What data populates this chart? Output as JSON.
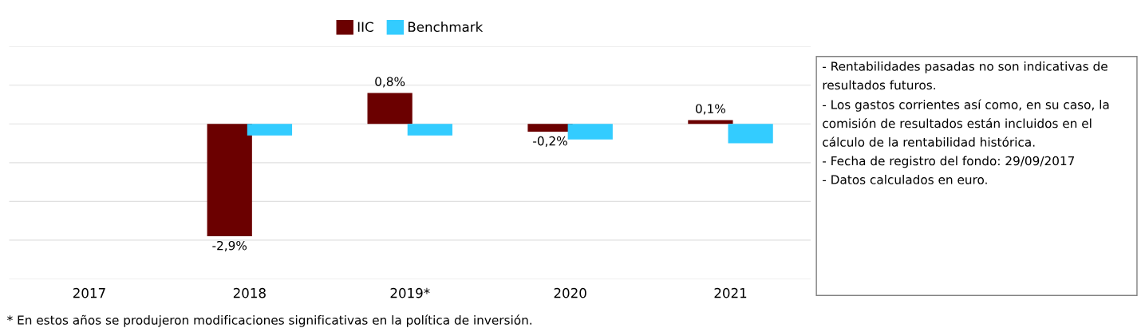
{
  "chart_data": {
    "type": "bar",
    "categories": [
      "2017",
      "2018",
      "2019*",
      "2020",
      "2021"
    ],
    "series": [
      {
        "name": "IIC",
        "color": "#6b0000",
        "values": [
          null,
          -2.9,
          0.8,
          -0.2,
          0.1
        ],
        "value_labels": [
          null,
          "-2,9%",
          "0,8%",
          "-0,2%",
          "0,1%"
        ]
      },
      {
        "name": "Benchmark",
        "color": "#33ccff",
        "values": [
          null,
          -0.3,
          -0.3,
          -0.4,
          -0.5
        ]
      }
    ],
    "ylim": [
      -4,
      2
    ],
    "yticks": [
      {
        "value": -4,
        "label": null
      },
      {
        "value": -3,
        "label": null
      },
      {
        "value": -2,
        "label": null
      },
      {
        "value": -1,
        "label": null
      },
      {
        "value": 0,
        "label": null
      },
      {
        "value": 1,
        "label": null
      },
      {
        "value": 2,
        "label": null
      }
    ],
    "tick_labels": "x",
    "grid": "y",
    "legend": "top",
    "annotations": [
      "- Rentabilidades pasadas no son indicativas de resultados futuros.",
      "- Los gastos corrientes así como, en su caso, la comisión de resultados están incluidos en el cálculo de la rentabilidad histórica.",
      "- Fecha de registro del fondo: 29/09/2017",
      "- Datos calculados en euro.",
      "* En estos años se produjeron modificaciones significativas en la política de inversión."
    ]
  }
}
